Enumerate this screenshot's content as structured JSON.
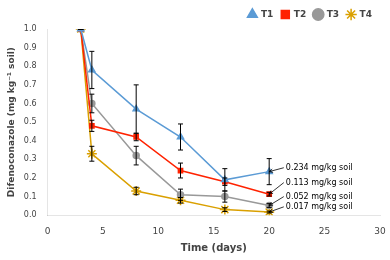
{
  "chart_data": {
    "type": "line",
    "xlabel": "Time (days)",
    "ylabel": "Difenoconazole (mg kg⁻¹ soil)",
    "xlim": [
      0,
      30
    ],
    "ylim": [
      0.0,
      1.0
    ],
    "xticks": [
      0,
      5,
      10,
      15,
      20,
      25,
      30
    ],
    "yticks": [
      {
        "value": 0.0,
        "label": "0.0"
      },
      0.1,
      0.2,
      0.3,
      0.4,
      0.5,
      0.6,
      0.7,
      0.8,
      0.9,
      {
        "value": 1.0,
        "label": "1.0"
      }
    ],
    "grid": false,
    "legend": "upper right",
    "x": [
      3,
      4,
      8,
      12,
      16,
      20
    ],
    "series": [
      {
        "name": "T1",
        "color": "#5b9bd5",
        "marker": "triangle",
        "values": [
          1.0,
          0.78,
          0.57,
          0.42,
          0.19,
          0.234
        ],
        "yerr": [
          0.0,
          0.1,
          0.13,
          0.07,
          0.06,
          0.07
        ]
      },
      {
        "name": "T2",
        "color": "#ff2200",
        "marker": "square",
        "values": [
          1.0,
          0.48,
          0.42,
          0.24,
          0.18,
          0.113
        ],
        "yerr": [
          0.0,
          0.03,
          0.02,
          0.04,
          0.02,
          0.01
        ]
      },
      {
        "name": "T3",
        "color": "#999999",
        "marker": "circle",
        "values": [
          1.0,
          0.6,
          0.32,
          0.11,
          0.1,
          0.052
        ],
        "yerr": [
          0.0,
          0.05,
          0.05,
          0.03,
          0.03,
          0.01
        ]
      },
      {
        "name": "T4",
        "color": "#daa000",
        "marker": "star",
        "values": [
          1.0,
          0.33,
          0.13,
          0.08,
          0.03,
          0.017
        ],
        "yerr": [
          0.0,
          0.04,
          0.02,
          0.015,
          0.01,
          0.005
        ]
      }
    ],
    "annotations": [
      {
        "x": 20,
        "y": 0.234,
        "text": "0.234 mg/kg soil",
        "tx": 21.5,
        "ty": 0.255
      },
      {
        "x": 20,
        "y": 0.113,
        "text": "0.113 mg/kg soil",
        "tx": 21.5,
        "ty": 0.175
      },
      {
        "x": 20,
        "y": 0.052,
        "text": "0.052 mg/kg soil",
        "tx": 21.5,
        "ty": 0.1
      },
      {
        "x": 20,
        "y": 0.017,
        "text": "0.017 mg/kg soil",
        "tx": 21.5,
        "ty": 0.045
      }
    ]
  }
}
